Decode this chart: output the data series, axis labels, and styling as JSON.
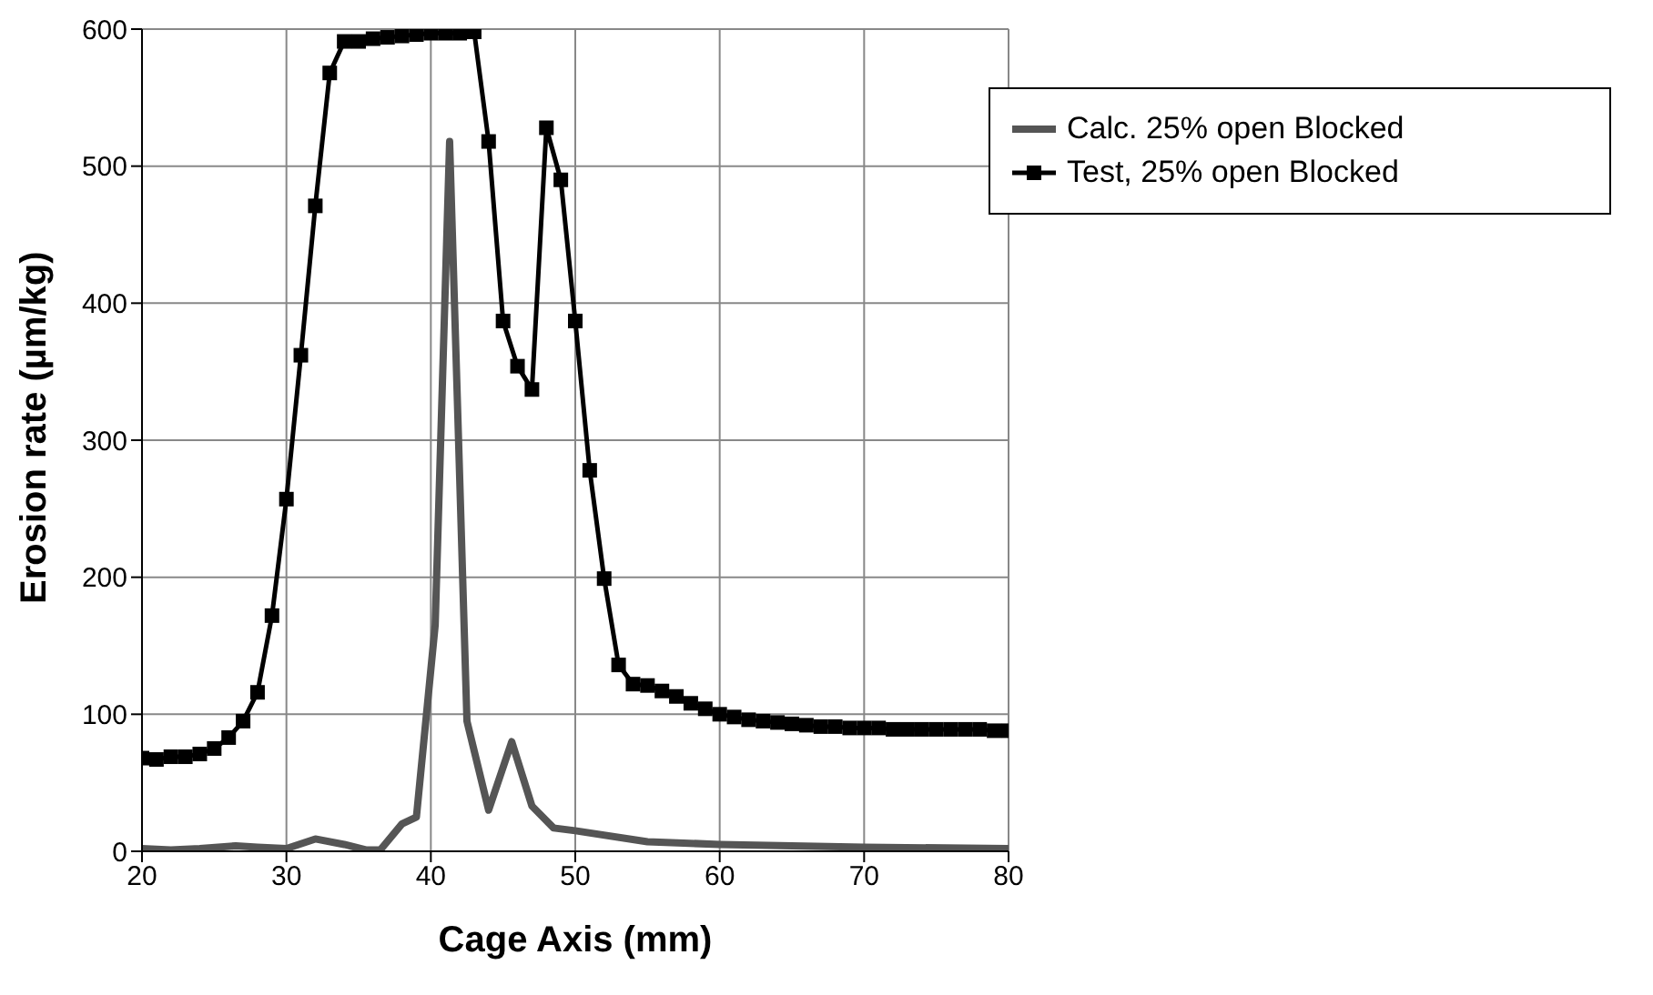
{
  "chart_data": {
    "type": "line",
    "xlabel": "Cage Axis (mm)",
    "ylabel": "Erosion rate (µm/kg)",
    "xlim": [
      20,
      80
    ],
    "xticks": [
      20,
      30,
      40,
      50,
      60,
      70,
      80
    ],
    "ylim": [
      0,
      600
    ],
    "yticks": [
      0,
      100,
      200,
      300,
      400,
      500,
      600
    ],
    "grid": true,
    "legend": "top right",
    "series": [
      {
        "name": "Calc. 25% open Blocked",
        "color": "#555555",
        "marker": "none",
        "x": [
          20,
          22,
          24,
          26.5,
          28,
          30,
          32,
          34,
          35.5,
          36.5,
          38,
          39,
          40.3,
          41.3,
          42.5,
          44,
          45.6,
          47,
          48.5,
          50,
          55,
          60,
          70,
          80
        ],
        "values": [
          2,
          1,
          2,
          4,
          3,
          2,
          9,
          5,
          1,
          1,
          20,
          25,
          165,
          518,
          95,
          30,
          80,
          33,
          17,
          15,
          7,
          5,
          3,
          2
        ]
      },
      {
        "name": "Test, 25% open Blocked",
        "color": "#000000",
        "marker": "square",
        "x": [
          20,
          21,
          22,
          23,
          24,
          25,
          26,
          27,
          28,
          29,
          30,
          31,
          32,
          33,
          34,
          35,
          36,
          37,
          38,
          39,
          40,
          41,
          42,
          43,
          44,
          45,
          46,
          47,
          48,
          49,
          50,
          51,
          52,
          53,
          54,
          55,
          56,
          57,
          58,
          59,
          60,
          61,
          62,
          63,
          64,
          65,
          66,
          67,
          68,
          69,
          70,
          71,
          72,
          73,
          74,
          75,
          76,
          77,
          78,
          79,
          80
        ],
        "values": [
          68,
          67,
          69,
          69,
          71,
          75,
          83,
          95,
          116,
          172,
          257,
          362,
          471,
          568,
          591,
          591,
          593,
          594,
          595,
          596,
          597,
          597,
          597,
          598,
          518,
          387,
          354,
          337,
          528,
          490,
          387,
          278,
          199,
          136,
          122,
          121,
          117,
          113,
          108,
          104,
          100,
          98,
          96,
          95,
          94,
          93,
          92,
          91,
          91,
          90,
          90,
          90,
          89,
          89,
          89,
          89,
          89,
          89,
          89,
          88,
          88
        ]
      }
    ]
  }
}
